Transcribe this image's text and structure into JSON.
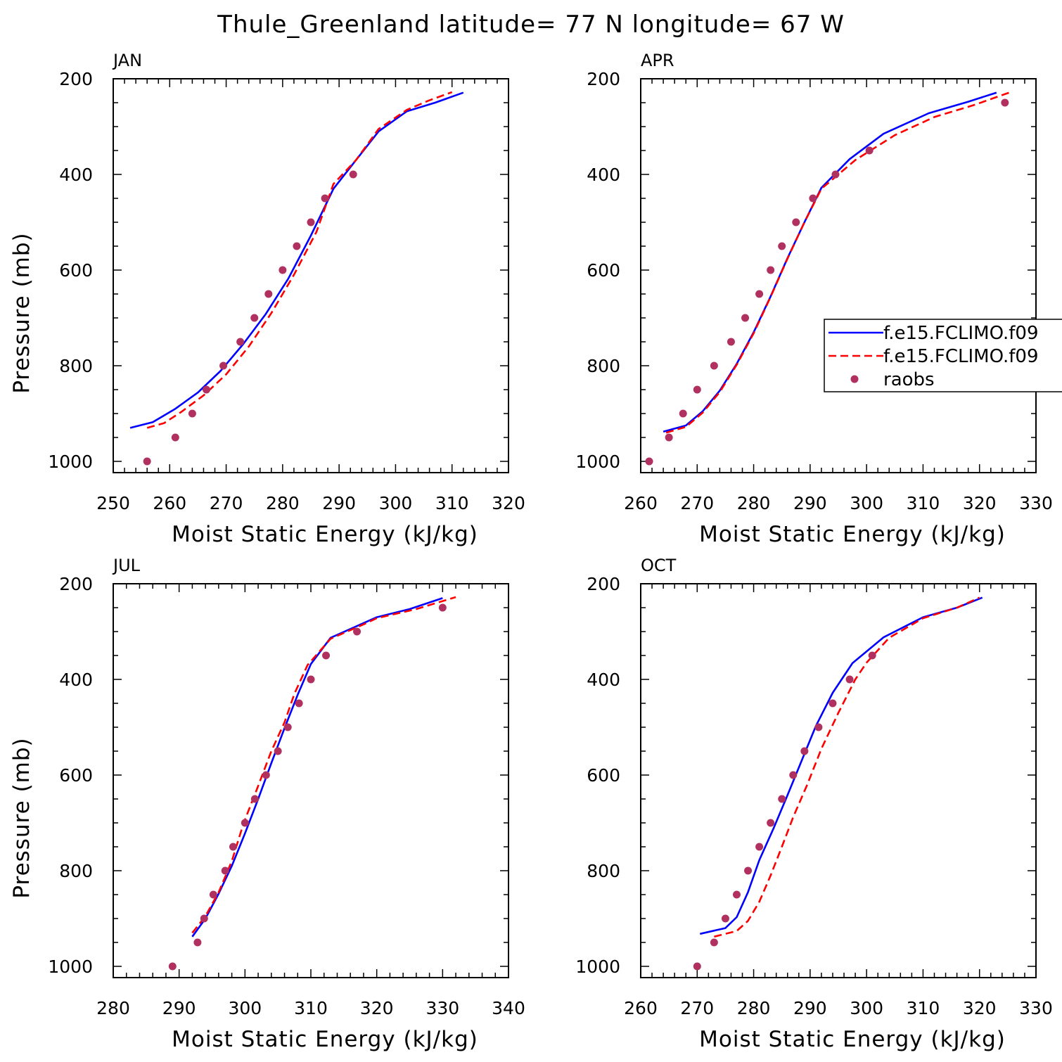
{
  "figure": {
    "title": "Thule_Greenland  latitude= 77 N longitude= 67 W",
    "legend_series": [
      {
        "label": "f.e15.FCLIMO.f09",
        "color": "#0000ff",
        "style": "solid"
      },
      {
        "label": "f.e15.FCLIMO.f09",
        "color": "#ff0000",
        "style": "dashed"
      },
      {
        "label": "raobs",
        "color": "#b03060",
        "style": "dot"
      }
    ]
  },
  "chart_data": [
    {
      "type": "line",
      "panel": "JAN",
      "xlabel": "Moist Static Energy (kJ/kg)",
      "ylabel": "Pressure (mb)",
      "xlim": [
        250,
        320
      ],
      "ylim": [
        1040,
        200
      ],
      "xticks": [
        250,
        260,
        270,
        280,
        290,
        300,
        310,
        320
      ],
      "yticks": [
        200,
        400,
        600,
        800,
        1000
      ],
      "series": [
        {
          "points": [
            [
              253,
              930
            ],
            [
              257,
              918
            ],
            [
              261,
              890
            ],
            [
              265,
              856
            ],
            [
              269,
              811
            ],
            [
              273,
              755
            ],
            [
              277,
              692
            ],
            [
              281,
              618
            ],
            [
              285,
              528
            ],
            [
              289,
              430
            ],
            [
              293,
              370
            ],
            [
              297,
              310
            ],
            [
              302,
              268
            ],
            [
              307,
              250
            ],
            [
              312,
              229
            ]
          ]
        },
        {
          "points": [
            [
              256,
              930
            ],
            [
              259,
              920
            ],
            [
              262,
              897
            ],
            [
              266,
              862
            ],
            [
              270,
              818
            ],
            [
              274,
              760
            ],
            [
              278,
              690
            ],
            [
              282,
              610
            ],
            [
              286,
              520
            ],
            [
              289,
              420
            ],
            [
              293,
              370
            ],
            [
              297,
              305
            ],
            [
              302,
              265
            ],
            [
              306,
              245
            ],
            [
              310,
              228
            ]
          ]
        },
        {
          "points": [
            [
              256,
              1000
            ],
            [
              261,
              950
            ],
            [
              264,
              900
            ],
            [
              266.5,
              850
            ],
            [
              269.5,
              800
            ],
            [
              272.5,
              750
            ],
            [
              275,
              700
            ],
            [
              277.5,
              650
            ],
            [
              280,
              600
            ],
            [
              282.5,
              550
            ],
            [
              285,
              500
            ],
            [
              287.5,
              450
            ],
            [
              292.5,
              400
            ]
          ]
        }
      ]
    },
    {
      "type": "line",
      "panel": "APR",
      "xlabel": "Moist Static Energy (kJ/kg)",
      "ylabel": "",
      "xlim": [
        260,
        330
      ],
      "ylim": [
        1040,
        200
      ],
      "xticks": [
        260,
        270,
        280,
        290,
        300,
        310,
        320,
        330
      ],
      "yticks": [
        200,
        400,
        600,
        800,
        1000
      ],
      "show_legend": true,
      "series": [
        {
          "points": [
            [
              264,
              938
            ],
            [
              268,
              925
            ],
            [
              271,
              895
            ],
            [
              274,
              852
            ],
            [
              277,
              796
            ],
            [
              280,
              730
            ],
            [
              283,
              655
            ],
            [
              286,
              575
            ],
            [
              289,
              500
            ],
            [
              292,
              428
            ],
            [
              297,
              368
            ],
            [
              303,
              315
            ],
            [
              311,
              272
            ],
            [
              318,
              248
            ],
            [
              323,
              229
            ]
          ]
        },
        {
          "points": [
            [
              264.5,
              940
            ],
            [
              268,
              928
            ],
            [
              271,
              898
            ],
            [
              274,
              855
            ],
            [
              277,
              798
            ],
            [
              280,
              732
            ],
            [
              283,
              656
            ],
            [
              286,
              576
            ],
            [
              289,
              500
            ],
            [
              292,
              430
            ],
            [
              298,
              370
            ],
            [
              305,
              318
            ],
            [
              312,
              280
            ],
            [
              319,
              255
            ],
            [
              325.5,
              228
            ]
          ]
        },
        {
          "points": [
            [
              261.5,
              1000
            ],
            [
              265,
              950
            ],
            [
              267.5,
              900
            ],
            [
              270,
              850
            ],
            [
              273,
              800
            ],
            [
              276,
              750
            ],
            [
              278.5,
              700
            ],
            [
              281,
              650
            ],
            [
              283,
              600
            ],
            [
              285,
              550
            ],
            [
              287.5,
              500
            ],
            [
              290.5,
              450
            ],
            [
              294.5,
              400
            ],
            [
              300.5,
              350
            ],
            [
              324.5,
              250
            ]
          ]
        }
      ]
    },
    {
      "type": "line",
      "panel": "JUL",
      "xlabel": "Moist Static Energy (kJ/kg)",
      "ylabel": "Pressure (mb)",
      "xlim": [
        280,
        340
      ],
      "ylim": [
        1040,
        200
      ],
      "xticks": [
        280,
        290,
        300,
        310,
        320,
        330,
        340
      ],
      "yticks": [
        200,
        400,
        600,
        800,
        1000
      ],
      "series": [
        {
          "points": [
            [
              292,
              938
            ],
            [
              294,
              900
            ],
            [
              296,
              848
            ],
            [
              298,
              790
            ],
            [
              300,
              722
            ],
            [
              302,
              650
            ],
            [
              304,
              575
            ],
            [
              306,
              502
            ],
            [
              308,
              432
            ],
            [
              310,
              368
            ],
            [
              313,
              313
            ],
            [
              320,
              270
            ],
            [
              325,
              253
            ],
            [
              330,
              230
            ]
          ]
        },
        {
          "points": [
            [
              292,
              930
            ],
            [
              294,
              895
            ],
            [
              296,
              845
            ],
            [
              298,
              780
            ],
            [
              299.8,
              700
            ],
            [
              301.8,
              630
            ],
            [
              304,
              550
            ],
            [
              306,
              490
            ],
            [
              307.5,
              430
            ],
            [
              309.5,
              370
            ],
            [
              313,
              315
            ],
            [
              318,
              285
            ],
            [
              320,
              272
            ],
            [
              326,
              253
            ],
            [
              332,
              228
            ]
          ]
        },
        {
          "points": [
            [
              289,
              1000
            ],
            [
              292.8,
              950
            ],
            [
              293.8,
              900
            ],
            [
              295.2,
              850
            ],
            [
              297,
              800
            ],
            [
              298.2,
              750
            ],
            [
              300,
              700
            ],
            [
              301.5,
              650
            ],
            [
              303.2,
              600
            ],
            [
              305,
              550
            ],
            [
              306.5,
              500
            ],
            [
              308.2,
              450
            ],
            [
              310,
              400
            ],
            [
              312.3,
              350
            ],
            [
              317,
              300
            ],
            [
              330,
              250
            ]
          ]
        }
      ]
    },
    {
      "type": "line",
      "panel": "OCT",
      "xlabel": "Moist Static Energy (kJ/kg)",
      "ylabel": "",
      "xlim": [
        260,
        330
      ],
      "ylim": [
        1040,
        200
      ],
      "xticks": [
        260,
        270,
        280,
        290,
        300,
        310,
        320,
        330
      ],
      "yticks": [
        200,
        400,
        600,
        800,
        1000
      ],
      "series": [
        {
          "points": [
            [
              270.5,
              932
            ],
            [
              275,
              920
            ],
            [
              277,
              897
            ],
            [
              279,
              845
            ],
            [
              281,
              778
            ],
            [
              283.5,
              712
            ],
            [
              286,
              642
            ],
            [
              288.5,
              570
            ],
            [
              291,
              498
            ],
            [
              294,
              428
            ],
            [
              297.5,
              366
            ],
            [
              303,
              312
            ],
            [
              310,
              270
            ],
            [
              316,
              250
            ],
            [
              320.5,
              229
            ]
          ]
        },
        {
          "points": [
            [
              273,
              938
            ],
            [
              277,
              926
            ],
            [
              279,
              905
            ],
            [
              281,
              865
            ],
            [
              283,
              810
            ],
            [
              285,
              750
            ],
            [
              287,
              688
            ],
            [
              289.5,
              620
            ],
            [
              292,
              545
            ],
            [
              295,
              470
            ],
            [
              298,
              400
            ],
            [
              300,
              365
            ],
            [
              304,
              313
            ],
            [
              310,
              272
            ],
            [
              316,
              250
            ],
            [
              320,
              229
            ]
          ]
        },
        {
          "points": [
            [
              270,
              1000
            ],
            [
              273,
              950
            ],
            [
              275,
              900
            ],
            [
              277,
              850
            ],
            [
              279,
              800
            ],
            [
              281,
              750
            ],
            [
              283,
              700
            ],
            [
              285,
              650
            ],
            [
              287,
              600
            ],
            [
              289,
              550
            ],
            [
              291.5,
              500
            ],
            [
              294,
              450
            ],
            [
              297,
              400
            ],
            [
              301,
              350
            ]
          ]
        }
      ]
    }
  ]
}
